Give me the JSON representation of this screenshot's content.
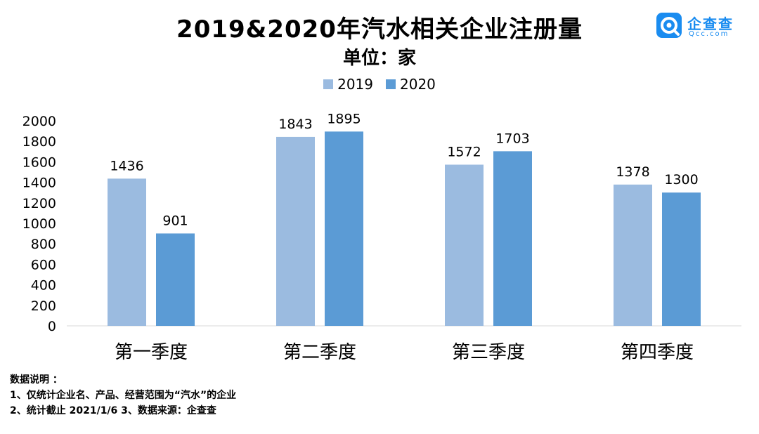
{
  "header": {
    "title": "2019&2020年汽水相关企业注册量",
    "subtitle": "单位：家"
  },
  "logo": {
    "name": "企查查",
    "domain": "Qcc.com"
  },
  "chart_data": {
    "type": "bar",
    "categories": [
      "第一季度",
      "第二季度",
      "第三季度",
      "第四季度"
    ],
    "series": [
      {
        "name": "2019",
        "values": [
          1436,
          1843,
          1572,
          1378
        ],
        "color": "#9bbbe0"
      },
      {
        "name": "2020",
        "values": [
          901,
          1895,
          1703,
          1300
        ],
        "color": "#5b9bd5"
      }
    ],
    "title": "2019&2020年汽水相关企业注册量",
    "subtitle": "单位：家",
    "ylim": [
      0,
      2000
    ],
    "yticks": [
      0,
      200,
      400,
      600,
      800,
      1000,
      1200,
      1400,
      1600,
      1800,
      2000
    ],
    "grid": false,
    "legend": "top-center",
    "data_labels": true
  },
  "notes": {
    "heading": "数据说明 ：",
    "line1": "1、仅统计企业名、产品、经营范围为“汽水”的企业",
    "line2": "2、统计截止 2021/1/6   3、数据来源：企查查"
  }
}
